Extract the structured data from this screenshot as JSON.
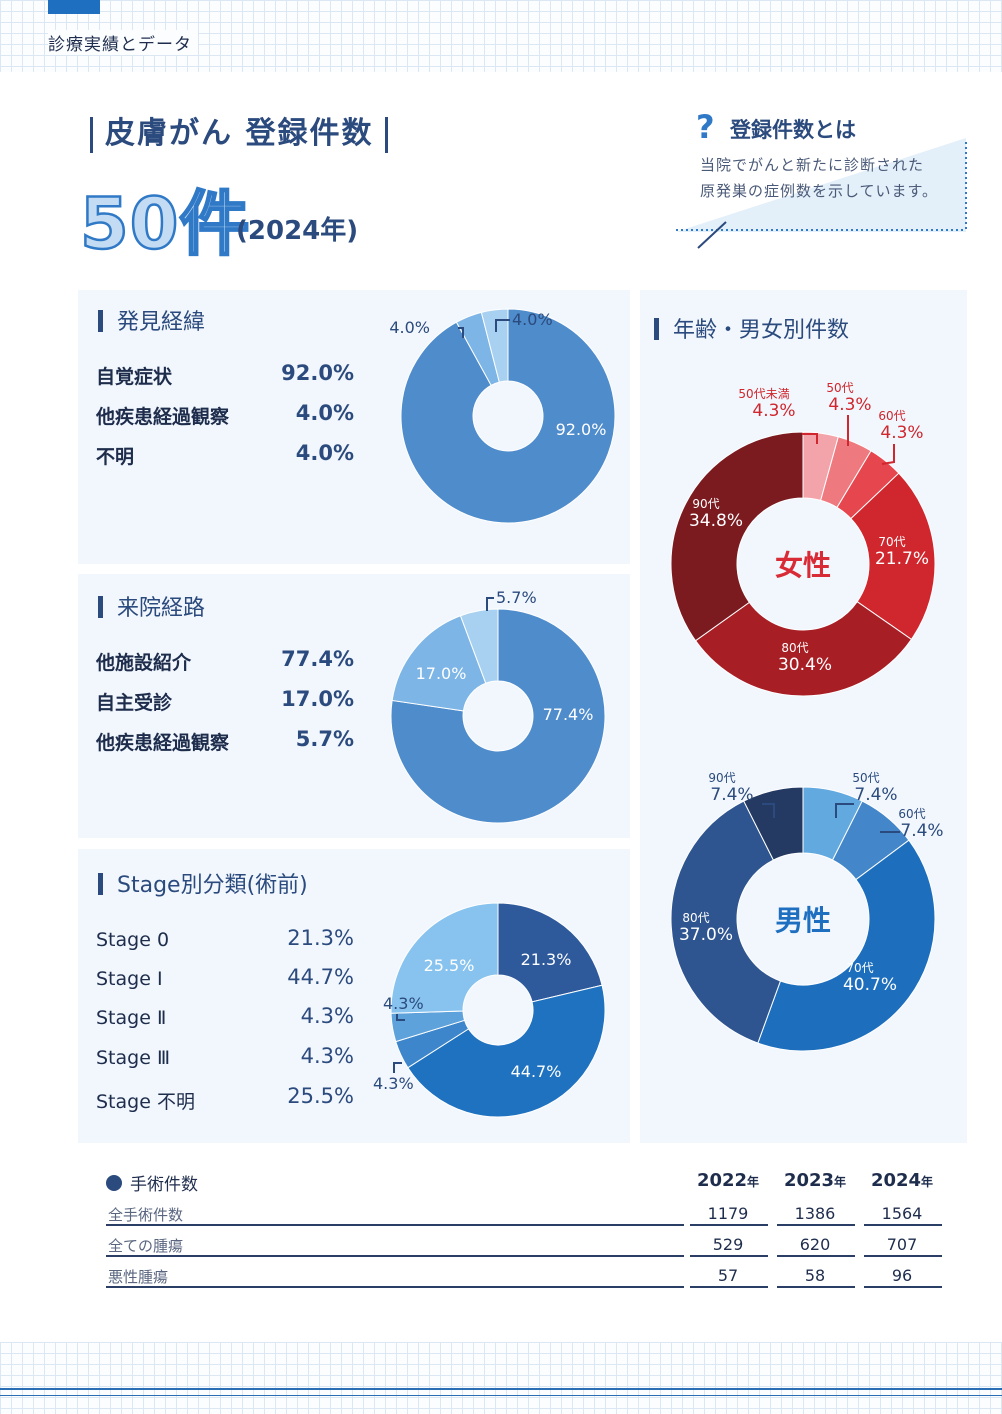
{
  "header": {
    "section_label": "診療実績とデータ"
  },
  "title": {
    "main": "皮膚がん 登録件数",
    "count": "50件",
    "year": "(2024年)"
  },
  "info": {
    "question_mark": "?",
    "title": "登録件数とは",
    "lines": [
      "当院でがんと新たに診断された",
      "原発巣の症例数を示しています。"
    ]
  },
  "discovery": {
    "title": "発見経緯",
    "rows": [
      {
        "label": "自覚症状",
        "value": "92.0%"
      },
      {
        "label": "他疾患経過観察",
        "value": "4.0%"
      },
      {
        "label": "不明",
        "value": "4.0%"
      }
    ]
  },
  "route": {
    "title": "来院経路",
    "rows": [
      {
        "label": "他施設紹介",
        "value": "77.4%"
      },
      {
        "label": "自主受診",
        "value": "17.0%"
      },
      {
        "label": "他疾患経過観察",
        "value": "5.7%"
      }
    ]
  },
  "stage": {
    "title": "Stage別分類(術前)",
    "rows": [
      {
        "label": "Stage 0",
        "value": "21.3%"
      },
      {
        "label": "Stage Ⅰ",
        "value": "44.7%"
      },
      {
        "label": "Stage Ⅱ",
        "value": "4.3%"
      },
      {
        "label": "Stage Ⅲ",
        "value": "4.3%"
      },
      {
        "label": "Stage 不明",
        "value": "25.5%"
      }
    ]
  },
  "age": {
    "title": "年齢・男女別件数",
    "female_label": "女性",
    "male_label": "男性"
  },
  "chart_data": [
    {
      "type": "pie",
      "title": "発見経緯",
      "categories": [
        "自覚症状",
        "他疾患経過観察",
        "不明"
      ],
      "values": [
        92.0,
        4.0,
        4.0
      ],
      "data_labels": [
        "92.0%",
        "4.0%",
        "4.0%"
      ],
      "colors": [
        "#4f8ccc",
        "#7cb5e6",
        "#a8d0f0"
      ]
    },
    {
      "type": "pie",
      "title": "来院経路",
      "categories": [
        "他施設紹介",
        "自主受診",
        "他疾患経過観察"
      ],
      "values": [
        77.4,
        17.0,
        5.7
      ],
      "data_labels": [
        "77.4%",
        "17.0%",
        "5.7%"
      ],
      "colors": [
        "#4f8ccc",
        "#7cb5e6",
        "#a8d0f0"
      ]
    },
    {
      "type": "pie",
      "title": "Stage別分類(術前)",
      "categories": [
        "Stage 0",
        "Stage Ⅰ",
        "Stage Ⅱ",
        "Stage Ⅲ",
        "Stage 不明"
      ],
      "values": [
        21.3,
        44.7,
        4.3,
        4.3,
        25.5
      ],
      "data_labels": [
        "21.3%",
        "44.7%",
        "4.3%",
        "4.3%",
        "25.5%"
      ],
      "colors": [
        "#2e5a9c",
        "#1f72c0",
        "#3d86cc",
        "#5ea2dc",
        "#87c3ee"
      ]
    },
    {
      "type": "pie",
      "title": "女性",
      "categories": [
        "50代未満",
        "50代",
        "60代",
        "70代",
        "80代",
        "90代"
      ],
      "values": [
        4.3,
        4.3,
        4.3,
        21.7,
        30.4,
        34.8
      ],
      "data_labels": [
        "4.3%",
        "4.3%",
        "4.3%",
        "21.7%",
        "30.4%",
        "34.8%"
      ],
      "colors": [
        "#f3a3aa",
        "#ee7a80",
        "#e6464e",
        "#d0262d",
        "#a81e25",
        "#7b1b20"
      ]
    },
    {
      "type": "pie",
      "title": "男性",
      "categories": [
        "50代",
        "60代",
        "70代",
        "80代",
        "90代"
      ],
      "values": [
        7.4,
        7.4,
        40.7,
        37.0,
        7.4
      ],
      "data_labels": [
        "7.4%",
        "7.4%",
        "40.7%",
        "37.0%",
        "7.4%"
      ],
      "colors": [
        "#62a9e0",
        "#4386c9",
        "#1d6fbd",
        "#2f5590",
        "#243a63"
      ]
    }
  ],
  "surgery": {
    "title": "手術件数",
    "years": [
      "2022",
      "2023",
      "2024"
    ],
    "year_suffix": "年",
    "rows": [
      {
        "label": "全手術件数",
        "values": [
          "1179",
          "1386",
          "1564"
        ]
      },
      {
        "label": "全ての腫瘍",
        "values": [
          "529",
          "620",
          "707"
        ]
      },
      {
        "label": "悪性腫瘍",
        "values": [
          "57",
          "58",
          "96"
        ]
      }
    ]
  }
}
